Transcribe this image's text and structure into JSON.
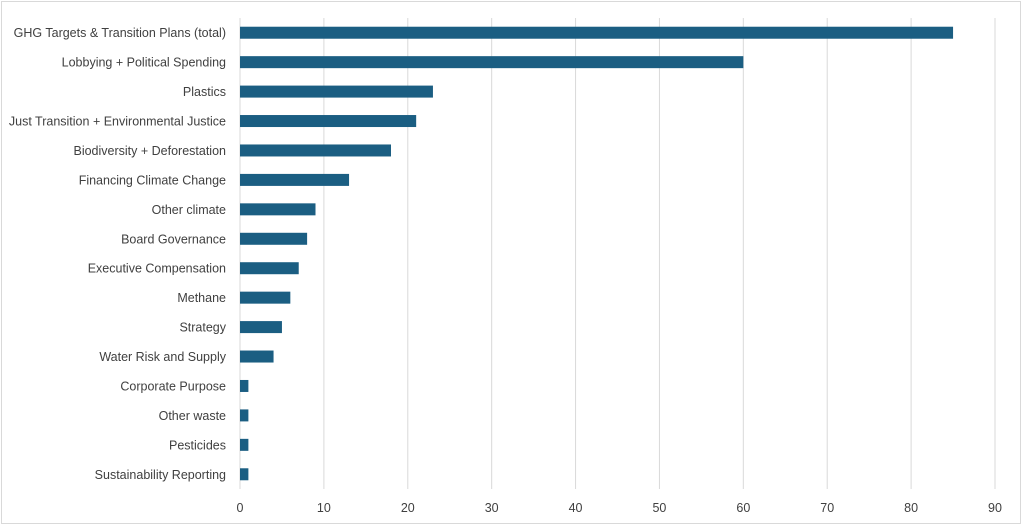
{
  "chart_data": {
    "type": "bar",
    "orientation": "horizontal",
    "categories": [
      "GHG Targets & Transition Plans (total)",
      "Lobbying + Political Spending",
      "Plastics",
      "Just Transition + Environmental Justice",
      "Biodiversity + Deforestation",
      "Financing Climate Change",
      "Other climate",
      "Board Governance",
      "Executive Compensation",
      "Methane",
      "Strategy",
      "Water Risk and Supply",
      "Corporate Purpose",
      "Other waste",
      "Pesticides",
      "Sustainability Reporting"
    ],
    "values": [
      85,
      60,
      23,
      21,
      18,
      13,
      9,
      8,
      7,
      6,
      5,
      4,
      1,
      1,
      1,
      1
    ],
    "xlim": [
      0,
      90
    ],
    "xticks": [
      "0",
      "10",
      "20",
      "30",
      "40",
      "50",
      "60",
      "70",
      "80",
      "90"
    ],
    "grid": true,
    "legend": "none",
    "bar_color": "#1b5e82"
  }
}
